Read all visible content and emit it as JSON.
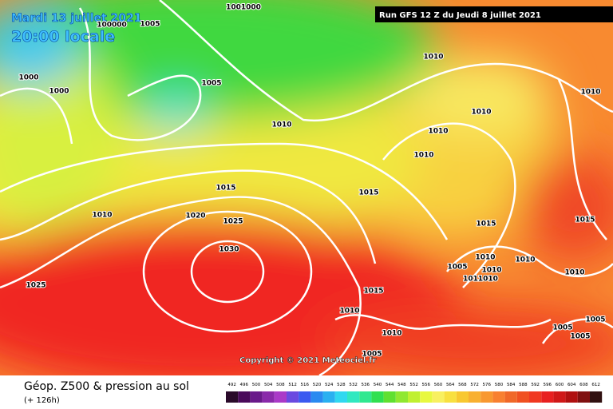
{
  "header": {
    "date": "Mardi 13 juillet 2021",
    "time": "20:00 locale",
    "run": "Run GFS 12 Z du Jeudi 8 juillet 2021"
  },
  "isobar_labels": [
    "1001000",
    "100000",
    "1005",
    "1000",
    "1000",
    "1005",
    "1010",
    "1010",
    "1010",
    "1010",
    "1010",
    "1010",
    "1015",
    "1015",
    "1010",
    "1020",
    "1025",
    "1030",
    "1015",
    "1015",
    "1005",
    "1010",
    "1010",
    "1010",
    "1010",
    "1011010",
    "1025",
    "1015",
    "1010",
    "1010",
    "1005",
    "1005",
    "1005",
    "1005"
  ],
  "copyright": "Copyright © 2021 Meteociel.fr",
  "footer": {
    "title": "Géop. Z500 & pression au sol",
    "lead": "(+ 126h)"
  },
  "legend": {
    "labels": [
      492,
      496,
      500,
      504,
      508,
      512,
      516,
      520,
      524,
      528,
      532,
      536,
      540,
      544,
      548,
      552,
      556,
      560,
      564,
      568,
      572,
      576,
      580,
      584,
      588,
      592,
      596,
      600,
      604,
      608,
      612
    ],
    "colors": [
      "#2a0a2a",
      "#4a0a5a",
      "#6a1a8a",
      "#8a2aaa",
      "#aa3ac8",
      "#6a4ae0",
      "#3a5af0",
      "#2a8af0",
      "#2ab0f0",
      "#30d8f0",
      "#30e8c0",
      "#30e890",
      "#30e050",
      "#60e030",
      "#90e830",
      "#c0f030",
      "#e8f840",
      "#f8f060",
      "#f8e040",
      "#f8c830",
      "#f8b030",
      "#f89830",
      "#f88030",
      "#f06828",
      "#f05020",
      "#f03820",
      "#e82020",
      "#d01818",
      "#b01010",
      "#801010",
      "#301010"
    ]
  }
}
